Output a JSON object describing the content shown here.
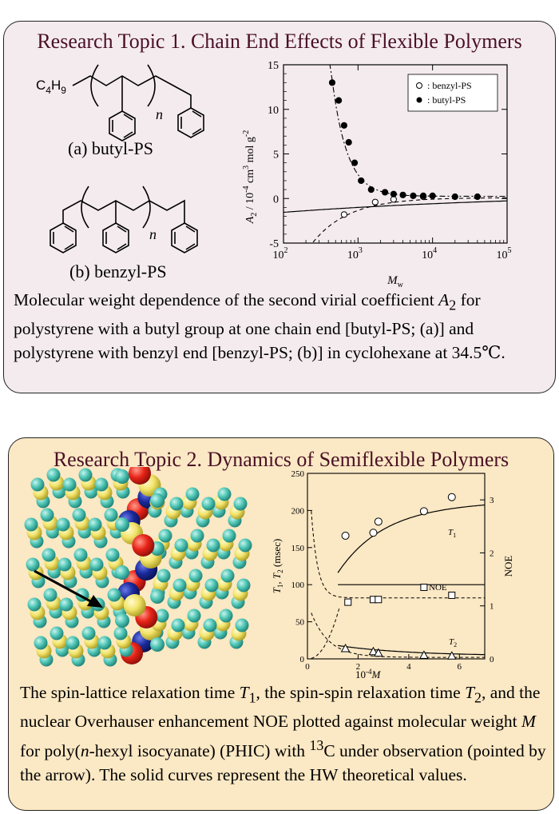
{
  "topic1": {
    "title": "Research Topic 1. Chain End Effects of Flexible Polymers",
    "structure_a_label": "(a) butyl-PS",
    "structure_b_label": "(b) benzyl-PS",
    "substituent": "C",
    "substituent_sub1": "4",
    "substituent_mid": "H",
    "substituent_sub2": "9",
    "repeat_n": "n",
    "caption_parts": [
      "Molecular weight dependence of the second virial coefficient ",
      "A",
      "2",
      " for polystyrene with a butyl group at one chain end [butyl-PS; (a)] and polystyrene with benzyl end [benzyl-PS; (b)] in cyclohexane at 34.5℃."
    ],
    "chart_data": {
      "type": "scatter",
      "x_scale": "log",
      "xlim": [
        100,
        100000
      ],
      "ylim": [
        -5,
        15
      ],
      "x_ticks": [
        "10",
        "10",
        "10",
        "10"
      ],
      "x_tick_exponents": [
        "2",
        "3",
        "4",
        "5"
      ],
      "y_ticks": [
        "-5",
        "0",
        "5",
        "10",
        "15"
      ],
      "xlabel_main": "M",
      "xlabel_sub": "w",
      "ylabel_parts": [
        "A",
        "2",
        " / 10",
        "-4",
        " cm",
        "3",
        " mol g",
        "-2"
      ],
      "legend": [
        {
          "marker": "open-circle",
          "label": ": benzyl-PS"
        },
        {
          "marker": "filled-circle",
          "label": ": butyl-PS"
        }
      ],
      "legend_position": "top-right",
      "series": [
        {
          "name": "benzyl-PS",
          "marker": "open-circle",
          "x": [
            650,
            1700,
            3000,
            7500
          ],
          "y": [
            -1.8,
            -0.4,
            -0.1,
            0.2
          ]
        },
        {
          "name": "butyl-PS",
          "marker": "filled-circle",
          "x": [
            450,
            550,
            650,
            750,
            900,
            1100,
            1500,
            2300,
            3000,
            4000,
            5500,
            7500,
            10000,
            20000,
            40000
          ],
          "y": [
            13.0,
            11.0,
            8.2,
            6.3,
            4.0,
            2.0,
            1.0,
            0.7,
            0.5,
            0.4,
            0.3,
            0.3,
            0.3,
            0.2,
            0.2
          ]
        }
      ]
    }
  },
  "topic2": {
    "title": "Research Topic 2. Dynamics of Semiflexible Polymers",
    "caption_parts": [
      "The spin-lattice relaxation time ",
      "T",
      "1",
      ", the spin-spin relaxation time ",
      "T",
      "2",
      ", and the nuclear Overhauser enhancement NOE plotted against molecular weight ",
      "M",
      " for poly(",
      "n",
      "-hexyl isocyanate) (PHIC) with ",
      "13",
      "C under observation (pointed by the arrow). The solid curves represent the HW theoretical values."
    ],
    "chart_data": {
      "type": "scatter",
      "xlim": [
        0,
        7
      ],
      "ylim": [
        0,
        250
      ],
      "y2lim": [
        0,
        3.5
      ],
      "x_ticks": [
        "0",
        "2",
        "4",
        "6"
      ],
      "y_ticks": [
        "0",
        "50",
        "100",
        "150",
        "200",
        "250"
      ],
      "y2_ticks": [
        "0",
        "1",
        "2",
        "3"
      ],
      "xlabel_parts": [
        "10",
        "-4",
        "M"
      ],
      "ylabel_parts": [
        "T",
        "1",
        ", ",
        "T",
        "2",
        " (msec)"
      ],
      "y2label": "NOE",
      "curve_labels": [
        {
          "main": "T",
          "sub": "1"
        },
        {
          "main": "NOE",
          "sub": ""
        },
        {
          "main": "T",
          "sub": "2"
        }
      ],
      "series": [
        {
          "name": "T1",
          "marker": "open-circle",
          "x": [
            1.5,
            2.6,
            2.8,
            4.6,
            5.7
          ],
          "y": [
            166,
            170,
            185,
            199,
            218
          ]
        },
        {
          "name": "NOE",
          "marker": "open-square",
          "axis": "right",
          "x": [
            1.6,
            2.6,
            2.8,
            4.6,
            5.7
          ],
          "y": [
            1.07,
            1.12,
            1.12,
            1.35,
            1.2
          ]
        },
        {
          "name": "T2",
          "marker": "open-triangle",
          "x": [
            1.5,
            2.6,
            2.8,
            4.6,
            5.7
          ],
          "y": [
            14,
            10,
            8,
            5,
            4
          ]
        }
      ]
    },
    "model_colors": {
      "hydrogen": "#4fc6b6",
      "carbon": "#f2e36a",
      "nitrogen": "#1a2a9c",
      "oxygen": "#e82418"
    }
  }
}
